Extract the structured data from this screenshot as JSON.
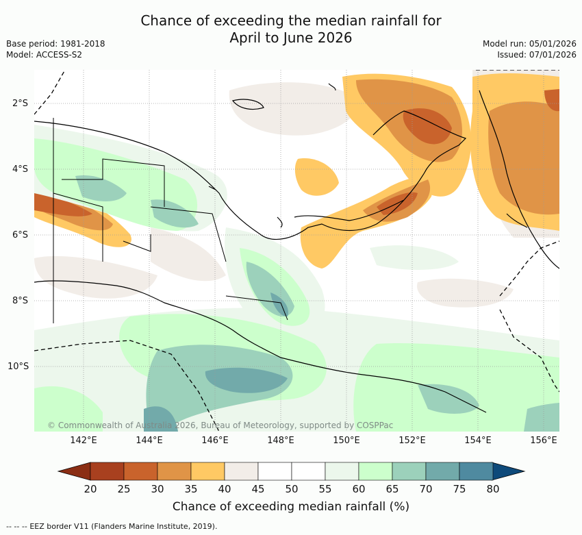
{
  "title_line1": "Chance of exceeding the median rainfall for",
  "title_line2": "April to June 2026",
  "left_meta": {
    "base_period": "Base period: 1981-2018",
    "model": "Model: ACCESS-S2"
  },
  "right_meta": {
    "model_run": "Model run: 05/01/2026",
    "issued": "Issued: 07/01/2026"
  },
  "map": {
    "lat_labels": [
      "2°S",
      "4°S",
      "6°S",
      "8°S",
      "10°S"
    ],
    "lon_labels": [
      "142°E",
      "144°E",
      "146°E",
      "148°E",
      "150°E",
      "152°E",
      "154°E",
      "156°E"
    ],
    "copyright": "© Commonwealth of Australia 2026, Bureau of Meteorology, supported by COSPPac"
  },
  "colorbar": {
    "ticks": [
      "20",
      "25",
      "30",
      "35",
      "40",
      "45",
      "50",
      "55",
      "60",
      "65",
      "70",
      "75",
      "80"
    ],
    "colors": [
      "#a8401f",
      "#c9632c",
      "#e09447",
      "#ffc964",
      "#f2ede8",
      "#ffffff",
      "#ffffff",
      "#ecf7ec",
      "#ccffcc",
      "#9cd1bb",
      "#72aaaa",
      "#4f8aa0",
      "#2c6994"
    ],
    "label": "Chance of exceeding median rainfall (%)"
  },
  "legend": {
    "text": "EEZ border V11 (Flanders Marine Institute, 2019)."
  }
}
